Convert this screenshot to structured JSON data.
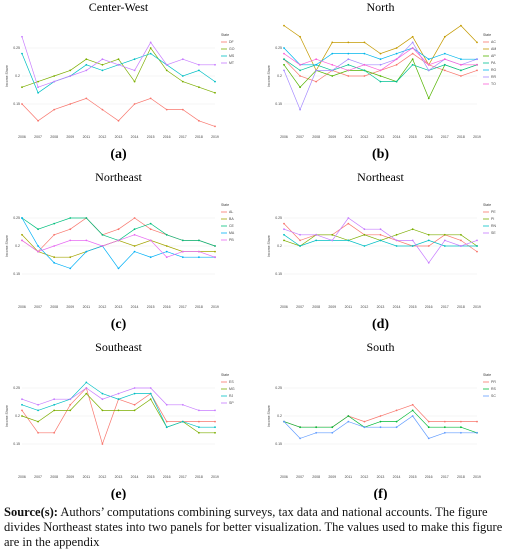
{
  "chart_data": [
    {
      "type": "line",
      "title": "Center-West",
      "panel": "(a)",
      "y_label": "Income Share",
      "legend_title": "State",
      "grid": true,
      "categories": [
        "2006",
        "2007",
        "2008",
        "2009",
        "2011",
        "2012",
        "2013",
        "2014",
        "2015",
        "2016",
        "2017",
        "2018",
        "2019"
      ],
      "ylim": [
        0.1,
        0.3
      ],
      "yticks": [
        0.15,
        0.2,
        0.25
      ],
      "series": [
        {
          "name": "DF",
          "color": "#F8766D",
          "values": [
            0.15,
            0.12,
            0.14,
            0.15,
            0.16,
            0.14,
            0.12,
            0.15,
            0.16,
            0.14,
            0.14,
            0.12,
            0.11
          ]
        },
        {
          "name": "GO",
          "color": "#7CAE00",
          "values": [
            0.18,
            0.19,
            0.2,
            0.21,
            0.23,
            0.22,
            0.23,
            0.19,
            0.25,
            0.21,
            0.19,
            0.18,
            0.17
          ]
        },
        {
          "name": "MS",
          "color": "#00BFC4",
          "values": [
            0.24,
            0.17,
            0.19,
            0.2,
            0.22,
            0.21,
            0.22,
            0.23,
            0.24,
            0.22,
            0.2,
            0.21,
            0.19
          ]
        },
        {
          "name": "MT",
          "color": "#C77CFF",
          "values": [
            0.27,
            0.18,
            0.19,
            0.2,
            0.21,
            0.23,
            0.22,
            0.21,
            0.26,
            0.22,
            0.23,
            0.22,
            0.22
          ]
        }
      ]
    },
    {
      "type": "line",
      "title": "North",
      "panel": "(b)",
      "y_label": "Income Share",
      "legend_title": "State",
      "grid": true,
      "categories": [
        "2006",
        "2007",
        "2008",
        "2009",
        "2011",
        "2012",
        "2013",
        "2014",
        "2015",
        "2016",
        "2017",
        "2018",
        "2019"
      ],
      "ylim": [
        0.1,
        0.3
      ],
      "yticks": [
        0.15,
        0.2,
        0.25
      ],
      "series": [
        {
          "name": "AC",
          "color": "#F8766D",
          "values": [
            0.23,
            0.2,
            0.19,
            0.21,
            0.2,
            0.2,
            0.21,
            0.22,
            0.24,
            0.22,
            0.21,
            0.2,
            0.21
          ]
        },
        {
          "name": "AM",
          "color": "#C49A00",
          "values": [
            0.29,
            0.27,
            0.21,
            0.26,
            0.26,
            0.26,
            0.24,
            0.25,
            0.27,
            0.22,
            0.27,
            0.29,
            0.26
          ]
        },
        {
          "name": "AP",
          "color": "#53B400",
          "values": [
            0.22,
            0.18,
            0.21,
            0.2,
            0.21,
            0.21,
            0.2,
            0.19,
            0.23,
            0.16,
            0.22,
            0.21,
            0.22
          ]
        },
        {
          "name": "PA",
          "color": "#00C094",
          "values": [
            0.23,
            0.21,
            0.22,
            0.21,
            0.22,
            0.21,
            0.19,
            0.19,
            0.22,
            0.21,
            0.22,
            0.21,
            0.22
          ]
        },
        {
          "name": "RO",
          "color": "#00B6EB",
          "values": [
            0.25,
            0.22,
            0.22,
            0.24,
            0.24,
            0.24,
            0.23,
            0.24,
            0.25,
            0.23,
            0.24,
            0.23,
            0.23
          ]
        },
        {
          "name": "RR",
          "color": "#A58AFF",
          "values": [
            0.21,
            0.14,
            0.21,
            0.21,
            0.23,
            0.22,
            0.22,
            0.23,
            0.26,
            0.21,
            0.23,
            0.22,
            0.23
          ]
        },
        {
          "name": "TO",
          "color": "#FB61D7",
          "values": [
            0.24,
            0.22,
            0.23,
            0.22,
            0.21,
            0.22,
            0.21,
            0.23,
            0.25,
            0.22,
            0.23,
            0.22,
            0.22
          ]
        }
      ]
    },
    {
      "type": "line",
      "title": "Northeast",
      "panel": "(c)",
      "y_label": "Income Share",
      "legend_title": "State",
      "grid": true,
      "categories": [
        "2006",
        "2007",
        "2008",
        "2009",
        "2011",
        "2012",
        "2013",
        "2014",
        "2015",
        "2016",
        "2017",
        "2018",
        "2019"
      ],
      "ylim": [
        0.1,
        0.3
      ],
      "yticks": [
        0.15,
        0.2,
        0.25
      ],
      "series": [
        {
          "name": "AL",
          "color": "#F8766D",
          "values": [
            0.21,
            0.19,
            0.22,
            0.23,
            0.25,
            0.22,
            0.23,
            0.25,
            0.23,
            0.22,
            0.21,
            0.21,
            0.2
          ]
        },
        {
          "name": "BA",
          "color": "#A3A500",
          "values": [
            0.22,
            0.19,
            0.18,
            0.18,
            0.19,
            0.2,
            0.21,
            0.2,
            0.21,
            0.2,
            0.19,
            0.19,
            0.19
          ]
        },
        {
          "name": "CE",
          "color": "#00BF7D",
          "values": [
            0.25,
            0.23,
            0.24,
            0.25,
            0.25,
            0.22,
            0.21,
            0.23,
            0.24,
            0.22,
            0.21,
            0.21,
            0.2
          ]
        },
        {
          "name": "MA",
          "color": "#00B0F6",
          "values": [
            0.25,
            0.2,
            0.17,
            0.16,
            0.19,
            0.2,
            0.16,
            0.19,
            0.18,
            0.19,
            0.18,
            0.18,
            0.18
          ]
        },
        {
          "name": "PB",
          "color": "#E76BF3",
          "values": [
            0.21,
            0.19,
            0.2,
            0.21,
            0.21,
            0.2,
            0.21,
            0.22,
            0.21,
            0.18,
            0.19,
            0.19,
            0.18
          ]
        }
      ]
    },
    {
      "type": "line",
      "title": "Northeast",
      "panel": "(d)",
      "y_label": "Income Share",
      "legend_title": "State",
      "grid": true,
      "categories": [
        "2006",
        "2007",
        "2008",
        "2009",
        "2011",
        "2012",
        "2013",
        "2014",
        "2015",
        "2016",
        "2017",
        "2018",
        "2019"
      ],
      "ylim": [
        0.1,
        0.3
      ],
      "yticks": [
        0.15,
        0.2,
        0.25
      ],
      "series": [
        {
          "name": "PE",
          "color": "#F8766D",
          "values": [
            0.24,
            0.21,
            0.22,
            0.22,
            0.24,
            0.22,
            0.22,
            0.21,
            0.2,
            0.2,
            0.22,
            0.21,
            0.19
          ]
        },
        {
          "name": "PI",
          "color": "#7CAE00",
          "values": [
            0.21,
            0.2,
            0.22,
            0.22,
            0.21,
            0.22,
            0.21,
            0.22,
            0.23,
            0.22,
            0.22,
            0.22,
            0.2
          ]
        },
        {
          "name": "RN",
          "color": "#00BFC4",
          "values": [
            0.22,
            0.2,
            0.21,
            0.21,
            0.21,
            0.2,
            0.21,
            0.2,
            0.2,
            0.21,
            0.2,
            0.2,
            0.2
          ]
        },
        {
          "name": "SE",
          "color": "#C77CFF",
          "values": [
            0.23,
            0.22,
            0.22,
            0.21,
            0.25,
            0.23,
            0.23,
            0.21,
            0.21,
            0.17,
            0.21,
            0.2,
            0.21
          ]
        }
      ]
    },
    {
      "type": "line",
      "title": "Southeast",
      "panel": "(e)",
      "y_label": "Income Share",
      "legend_title": "State",
      "grid": true,
      "categories": [
        "2006",
        "2007",
        "2008",
        "2009",
        "2011",
        "2012",
        "2013",
        "2014",
        "2015",
        "2016",
        "2017",
        "2018",
        "2019"
      ],
      "ylim": [
        0.1,
        0.3
      ],
      "yticks": [
        0.15,
        0.2,
        0.25
      ],
      "series": [
        {
          "name": "ES",
          "color": "#F8766D",
          "values": [
            0.21,
            0.17,
            0.17,
            0.22,
            0.25,
            0.15,
            0.23,
            0.22,
            0.24,
            0.19,
            0.19,
            0.19,
            0.19
          ]
        },
        {
          "name": "MG",
          "color": "#7CAE00",
          "values": [
            0.2,
            0.19,
            0.21,
            0.21,
            0.24,
            0.21,
            0.21,
            0.21,
            0.23,
            0.18,
            0.19,
            0.17,
            0.17
          ]
        },
        {
          "name": "RJ",
          "color": "#00BFC4",
          "values": [
            0.22,
            0.21,
            0.22,
            0.23,
            0.26,
            0.24,
            0.23,
            0.24,
            0.24,
            0.18,
            0.19,
            0.18,
            0.18
          ]
        },
        {
          "name": "SP",
          "color": "#C77CFF",
          "values": [
            0.23,
            0.22,
            0.23,
            0.23,
            0.25,
            0.23,
            0.24,
            0.25,
            0.25,
            0.22,
            0.22,
            0.21,
            0.21
          ]
        }
      ]
    },
    {
      "type": "line",
      "title": "South",
      "panel": "(f)",
      "y_label": "Income Share",
      "legend_title": "State",
      "grid": true,
      "categories": [
        "2006",
        "2007",
        "2008",
        "2009",
        "2011",
        "2012",
        "2013",
        "2014",
        "2015",
        "2016",
        "2017",
        "2018",
        "2019"
      ],
      "ylim": [
        0.1,
        0.3
      ],
      "yticks": [
        0.15,
        0.2,
        0.25
      ],
      "series": [
        {
          "name": "PR",
          "color": "#F8766D",
          "values": [
            0.19,
            0.18,
            0.18,
            0.18,
            0.2,
            0.19,
            0.2,
            0.21,
            0.22,
            0.19,
            0.19,
            0.19,
            0.19
          ]
        },
        {
          "name": "RS",
          "color": "#00BA38",
          "values": [
            0.19,
            0.18,
            0.18,
            0.18,
            0.2,
            0.18,
            0.19,
            0.19,
            0.21,
            0.18,
            0.18,
            0.18,
            0.17
          ]
        },
        {
          "name": "SC",
          "color": "#619CFF",
          "values": [
            0.19,
            0.16,
            0.17,
            0.17,
            0.19,
            0.18,
            0.18,
            0.18,
            0.2,
            0.16,
            0.17,
            0.17,
            0.17
          ]
        }
      ]
    }
  ],
  "caption": {
    "label": "Source(s):",
    "text": "Authors’ computations combining surveys, tax data and national accounts. The figure divides Northeast states into two panels for better visualization. The values used to make this figure are in the appendix"
  }
}
